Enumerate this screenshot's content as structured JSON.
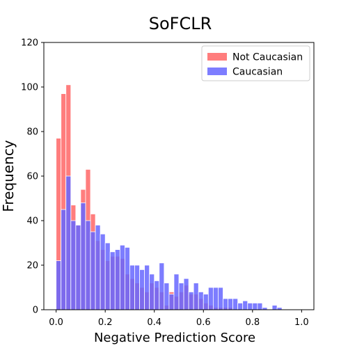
{
  "chart_data": {
    "type": "bar",
    "title": "SoFCLR",
    "xlabel": "Negative Prediction Score",
    "ylabel": "Frequency",
    "xlim": [
      -0.05,
      1.05
    ],
    "ylim": [
      0,
      120
    ],
    "xticks": [
      "0.0",
      "0.2",
      "0.4",
      "0.6",
      "0.8",
      "1.0"
    ],
    "yticks": [
      "0",
      "20",
      "40",
      "60",
      "80",
      "100",
      "120"
    ],
    "bin_width": 0.02,
    "legend_position": "top-right",
    "grid": false,
    "series": [
      {
        "name": "Not Caucasian",
        "color": "#ff6666",
        "bin_starts": [
          0.0,
          0.02,
          0.04,
          0.06,
          0.08,
          0.1,
          0.12,
          0.14,
          0.16,
          0.18,
          0.2,
          0.22,
          0.24,
          0.26,
          0.28,
          0.3,
          0.32,
          0.34,
          0.36,
          0.38,
          0.4,
          0.42,
          0.44,
          0.46,
          0.48,
          0.5,
          0.52,
          0.54,
          0.56,
          0.58,
          0.6,
          0.62,
          0.64,
          0.66,
          0.68,
          0.7
        ],
        "values": [
          77,
          97,
          101,
          47,
          38,
          54,
          63,
          43,
          31,
          27,
          22,
          24,
          24,
          23,
          16,
          14,
          12,
          10,
          8,
          12,
          10,
          8,
          2,
          8,
          6,
          8,
          11,
          7,
          7,
          5,
          3,
          2,
          1,
          1,
          1,
          1
        ]
      },
      {
        "name": "Caucasian",
        "color": "#6666ff",
        "bin_starts": [
          0.0,
          0.02,
          0.04,
          0.06,
          0.08,
          0.1,
          0.12,
          0.14,
          0.16,
          0.18,
          0.2,
          0.22,
          0.24,
          0.26,
          0.28,
          0.3,
          0.32,
          0.34,
          0.36,
          0.38,
          0.4,
          0.42,
          0.44,
          0.46,
          0.48,
          0.5,
          0.52,
          0.54,
          0.56,
          0.58,
          0.6,
          0.62,
          0.64,
          0.66,
          0.68,
          0.7,
          0.72,
          0.74,
          0.76,
          0.78,
          0.8,
          0.82,
          0.84,
          0.86,
          0.88,
          0.9
        ],
        "values": [
          22,
          45,
          60,
          40,
          38,
          48,
          40,
          35,
          38,
          34,
          30,
          26,
          27,
          29,
          28,
          20,
          20,
          18,
          20,
          16,
          13,
          21,
          12,
          7,
          16,
          12,
          14,
          8,
          12,
          8,
          7,
          10,
          10,
          10,
          5,
          5,
          5,
          3,
          4,
          3,
          3,
          3,
          1,
          0,
          2,
          1
        ]
      }
    ]
  }
}
